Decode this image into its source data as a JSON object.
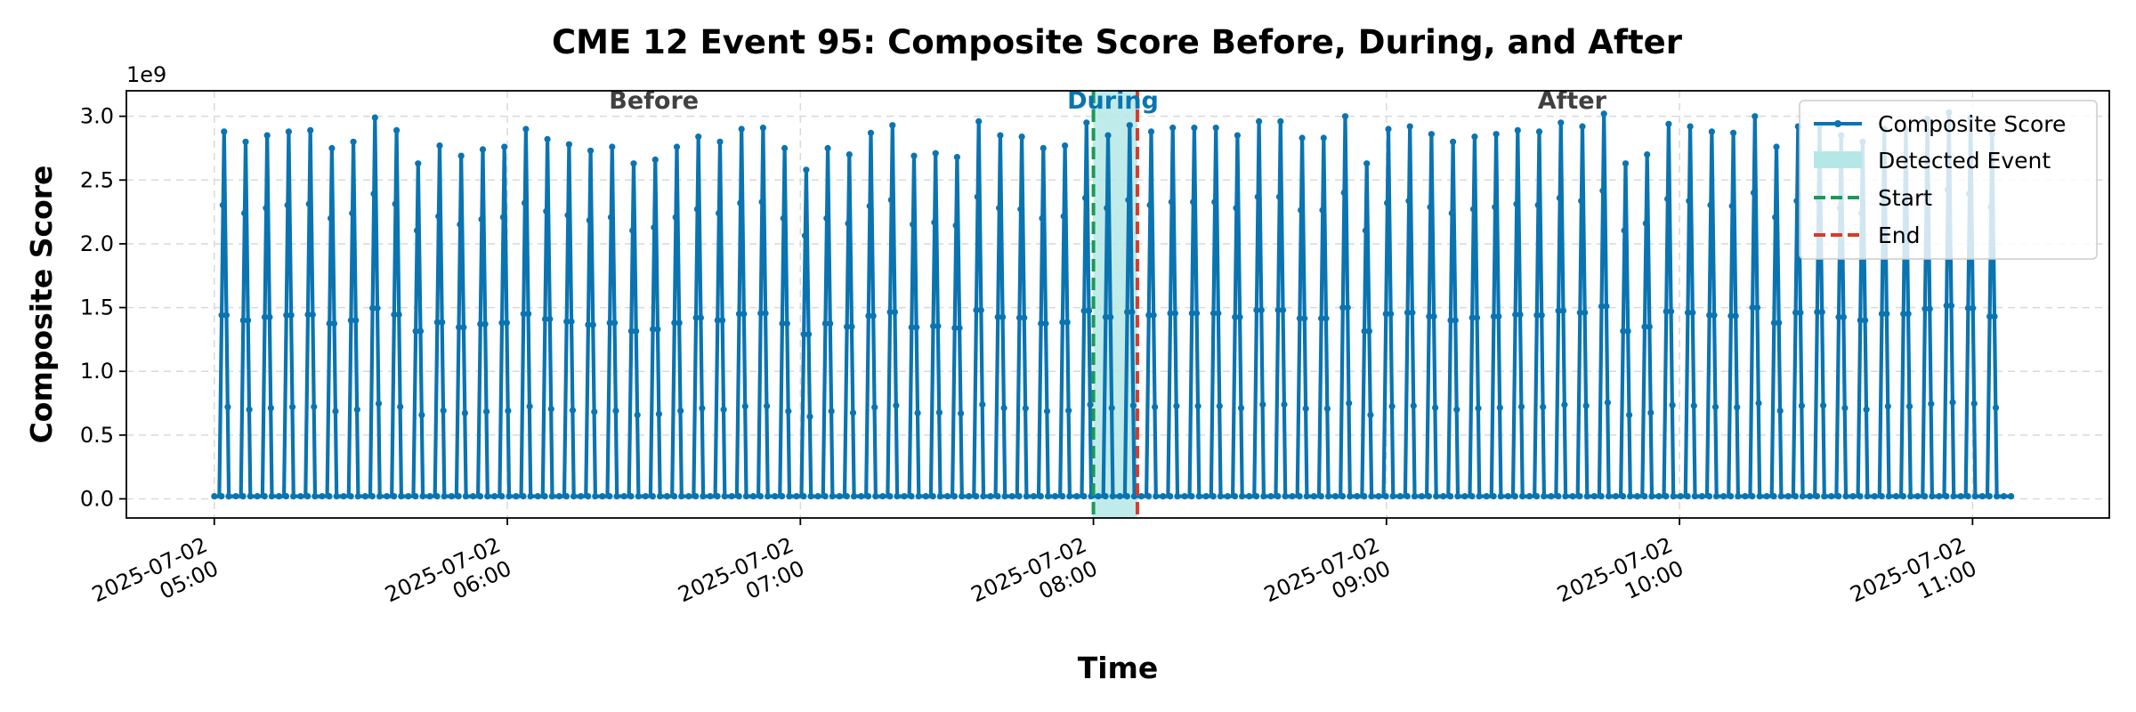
{
  "chart_data": {
    "type": "line",
    "title": "CME 12 Event 95: Composite Score Before, During, and After",
    "xlabel": "Time",
    "ylabel": "Composite Score",
    "y_offset_label": "1e9",
    "y_scale": 1000000000,
    "ylim": [
      -0.15,
      3.2
    ],
    "xlim": [
      "2025-07-02 04:42",
      "2025-07-02 11:28"
    ],
    "yticks": [
      {
        "value": 0.0,
        "label": "0.0"
      },
      {
        "value": 0.5,
        "label": "0.5"
      },
      {
        "value": 1.0,
        "label": "1.0"
      },
      {
        "value": 1.5,
        "label": "1.5"
      },
      {
        "value": 2.0,
        "label": "2.0"
      },
      {
        "value": 2.5,
        "label": "2.5"
      },
      {
        "value": 3.0,
        "label": "3.0"
      }
    ],
    "xticks": [
      {
        "value": "2025-07-02 05:00",
        "line1": "2025-07-02",
        "line2": "05:00"
      },
      {
        "value": "2025-07-02 06:00",
        "line1": "2025-07-02",
        "line2": "06:00"
      },
      {
        "value": "2025-07-02 07:00",
        "line1": "2025-07-02",
        "line2": "07:00"
      },
      {
        "value": "2025-07-02 08:00",
        "line1": "2025-07-02",
        "line2": "08:00"
      },
      {
        "value": "2025-07-02 09:00",
        "line1": "2025-07-02",
        "line2": "09:00"
      },
      {
        "value": "2025-07-02 10:00",
        "line1": "2025-07-02",
        "line2": "10:00"
      },
      {
        "value": "2025-07-02 11:00",
        "line1": "2025-07-02",
        "line2": "11:00"
      }
    ],
    "grid": true,
    "legend_placement": "top-right",
    "series": [
      {
        "name": "Composite Score",
        "color": "#0a74b1",
        "start": "2025-07-02 05:00",
        "end": "2025-07-02 11:08",
        "spike_start": "2025-07-02 05:02",
        "spike_end": "2025-07-02 11:04",
        "baseline": 0.02,
        "spike_peaks": [
          2.88,
          2.8,
          2.85,
          2.88,
          2.89,
          2.75,
          2.8,
          2.99,
          2.89,
          2.63,
          2.77,
          2.69,
          2.74,
          2.76,
          2.9,
          2.82,
          2.78,
          2.73,
          2.76,
          2.63,
          2.66,
          2.76,
          2.84,
          2.8,
          2.9,
          2.91,
          2.75,
          2.58,
          2.75,
          2.7,
          2.87,
          2.93,
          2.69,
          2.71,
          2.68,
          2.96,
          2.85,
          2.84,
          2.75,
          2.77,
          2.95,
          2.85,
          2.93,
          2.88,
          2.91,
          2.91,
          2.91,
          2.85,
          2.96,
          2.96,
          2.83,
          2.83,
          3.0,
          2.63,
          2.9,
          2.92,
          2.86,
          2.8,
          2.84,
          2.86,
          2.89,
          2.88,
          2.95,
          2.92,
          3.02,
          2.63,
          2.7,
          2.94,
          2.92,
          2.88,
          2.87,
          3.0,
          2.76,
          2.92,
          2.93,
          2.85,
          2.8,
          2.9,
          2.9,
          2.98,
          3.03,
          2.99,
          2.86
        ]
      }
    ],
    "event": {
      "name": "Detected Event",
      "start": "2025-07-02 08:00",
      "end": "2025-07-02 08:09",
      "fill_color": "#b5e7e7",
      "start_label": "Start",
      "end_label": "End",
      "start_color": "#1b9a55",
      "end_color": "#d93a2b"
    },
    "region_labels": [
      {
        "text": "Before",
        "x": "2025-07-02 06:30",
        "color": "#404040"
      },
      {
        "text": "During",
        "x": "2025-07-02 08:04",
        "color": "#0a74b1"
      },
      {
        "text": "After",
        "x": "2025-07-02 09:38",
        "color": "#404040"
      }
    ]
  }
}
